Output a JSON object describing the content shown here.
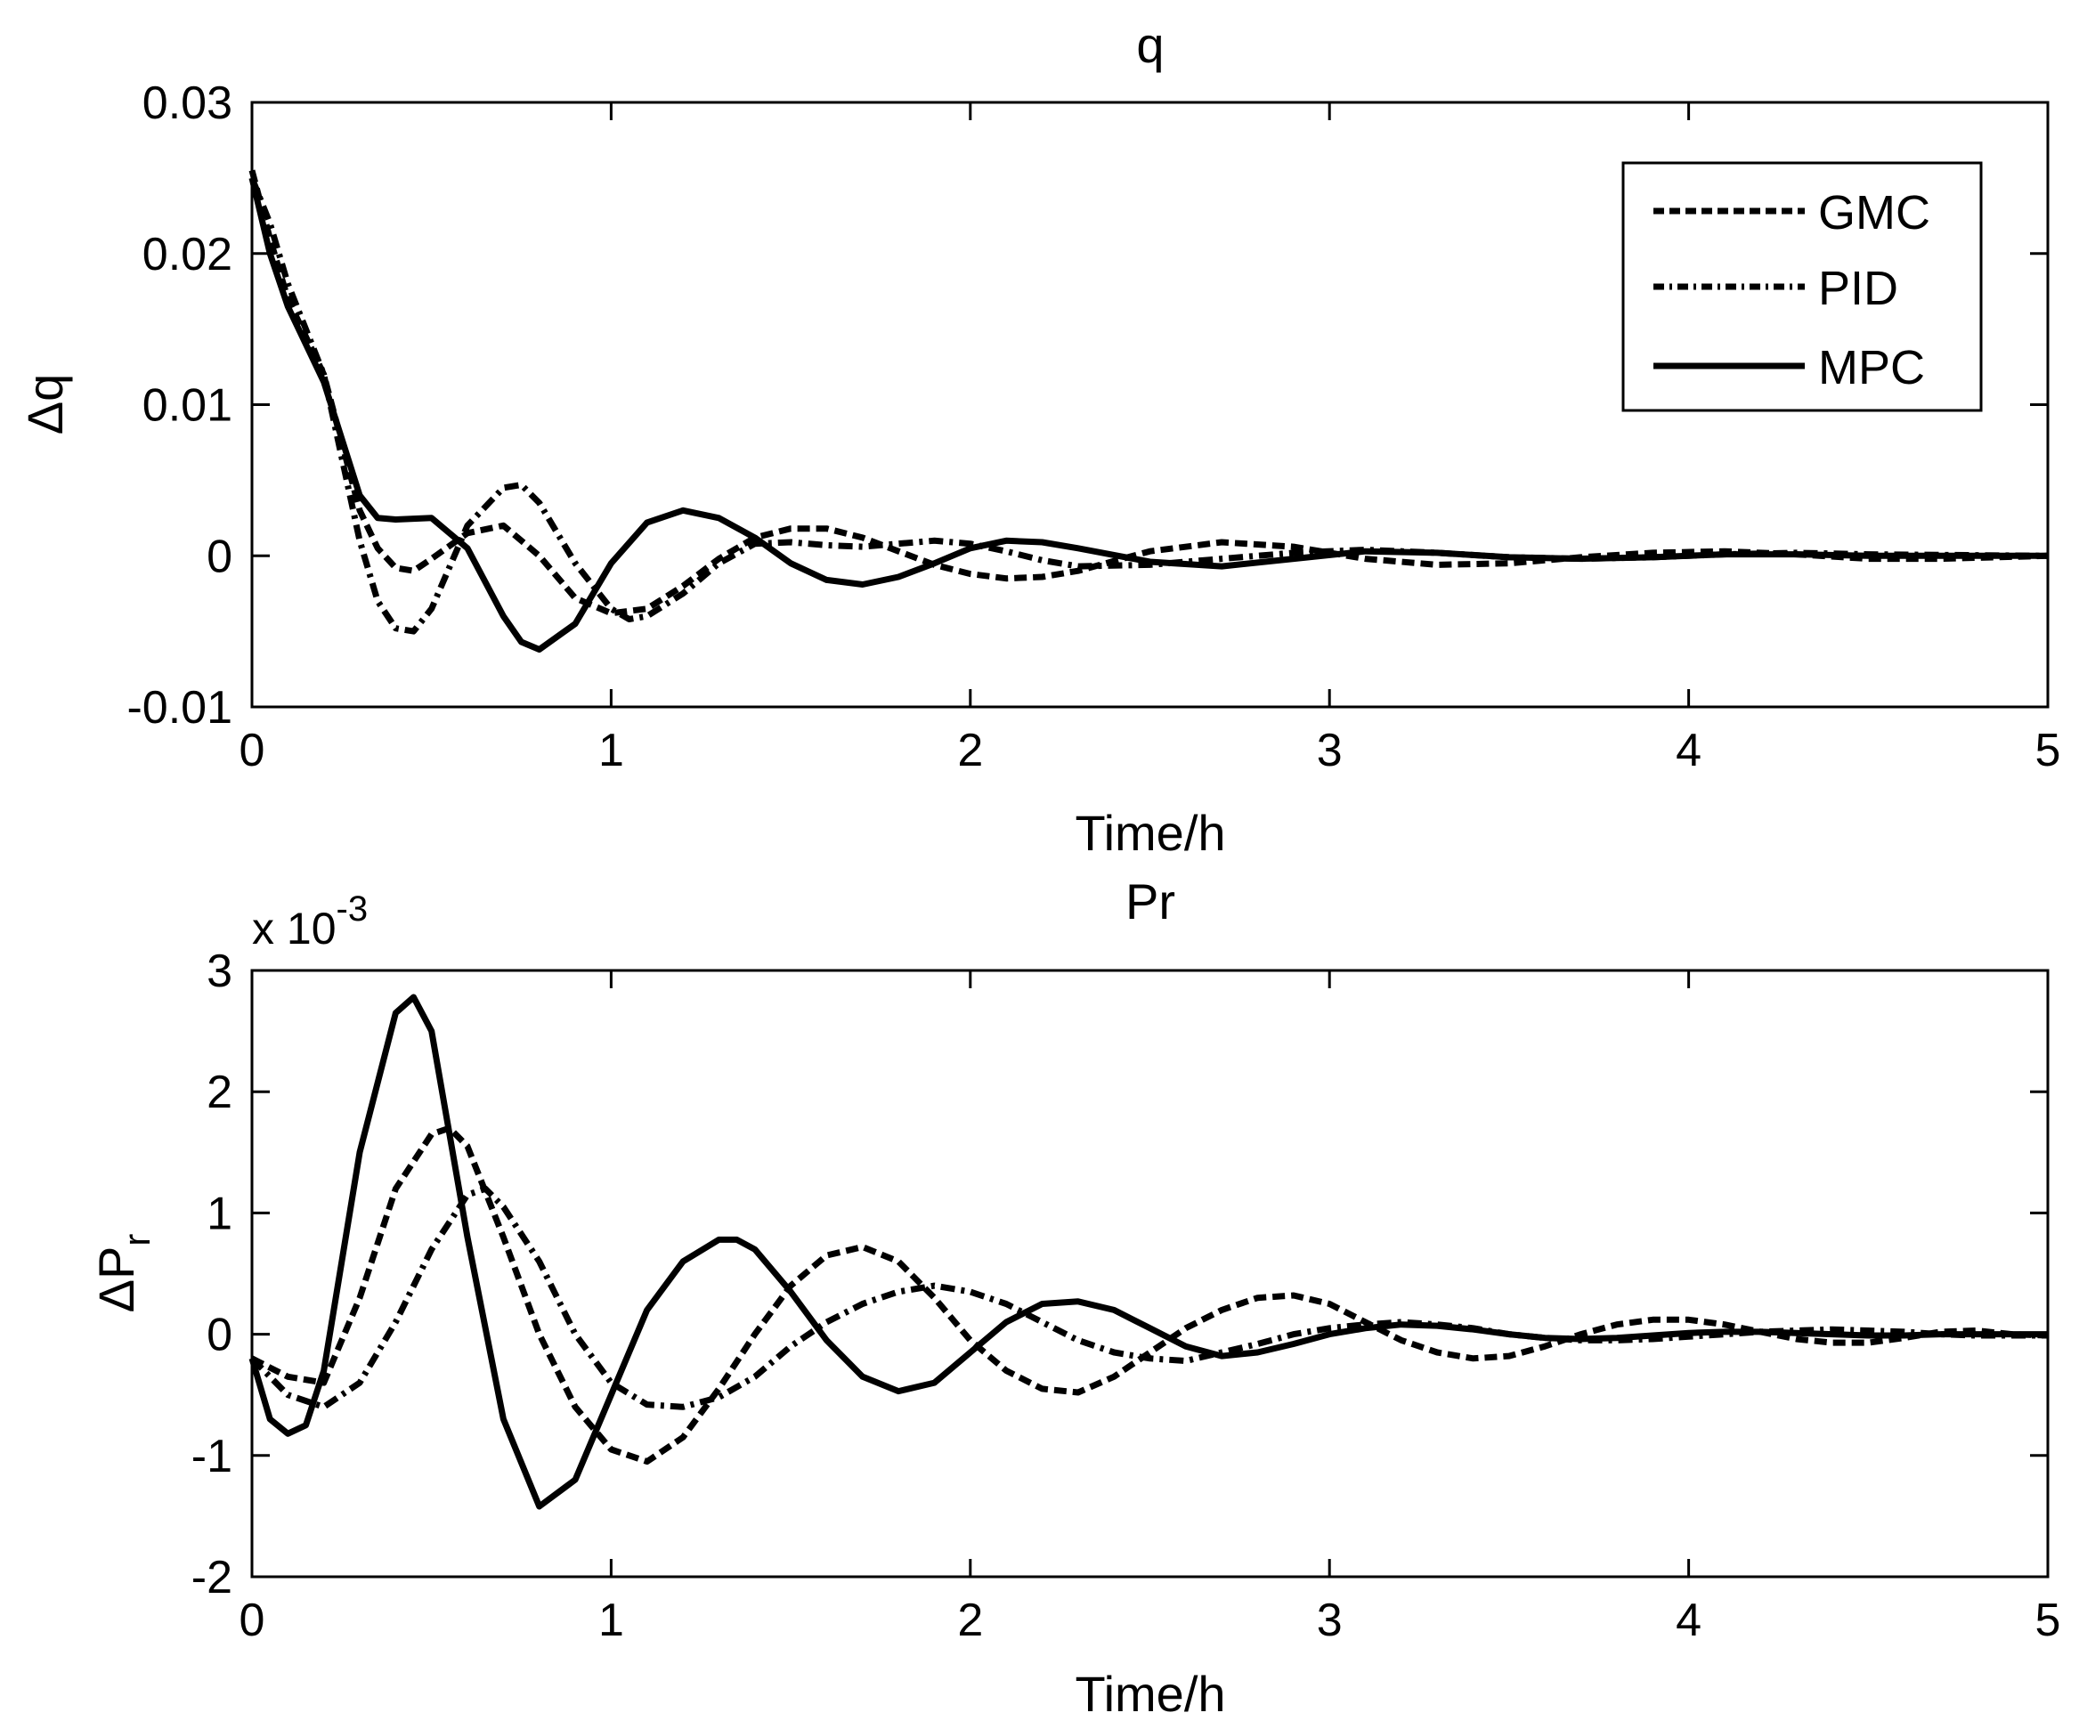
{
  "chart_data": [
    {
      "type": "line",
      "id": "top",
      "title": "q",
      "xlabel": "Time/h",
      "ylabel": "Δq",
      "xlim": [
        0,
        5
      ],
      "ylim": [
        -0.01,
        0.03
      ],
      "xticks": [
        0,
        1,
        2,
        3,
        4,
        5
      ],
      "xtick_labels": [
        "0",
        "1",
        "2",
        "3",
        "4",
        "5"
      ],
      "yticks": [
        -0.01,
        0,
        0.01,
        0.02,
        0.03
      ],
      "ytick_labels": [
        "-0.01",
        "0",
        "0.01",
        "0.02",
        "0.03"
      ],
      "grid": false,
      "legend": {
        "position": "top-right",
        "entries": [
          "GMC",
          "PID",
          "MPC"
        ]
      },
      "series": [
        {
          "name": "GMC",
          "style": "dashed",
          "x": [
            0,
            0.05,
            0.1,
            0.2,
            0.3,
            0.35,
            0.4,
            0.45,
            0.5,
            0.6,
            0.7,
            0.8,
            0.9,
            1.0,
            1.1,
            1.2,
            1.3,
            1.4,
            1.5,
            1.6,
            1.7,
            1.8,
            1.9,
            2.0,
            2.1,
            2.2,
            2.3,
            2.5,
            2.7,
            2.9,
            3.1,
            3.3,
            3.5,
            3.7,
            3.9,
            4.1,
            4.3,
            4.5,
            4.7,
            5.0
          ],
          "y": [
            0.0255,
            0.021,
            0.017,
            0.012,
            0.003,
            0.0005,
            -0.0008,
            -0.001,
            -0.0002,
            0.0015,
            0.002,
            0.0,
            -0.0028,
            -0.0038,
            -0.0035,
            -0.002,
            -0.0002,
            0.0012,
            0.0018,
            0.0018,
            0.0012,
            0.0003,
            -0.0006,
            -0.0012,
            -0.0015,
            -0.0014,
            -0.001,
            0.0003,
            0.0009,
            0.0006,
            -0.0002,
            -0.0006,
            -0.0005,
            -0.0001,
            0.0002,
            0.0003,
            0.0001,
            -0.0002,
            -0.0002,
            0.0
          ]
        },
        {
          "name": "PID",
          "style": "dashdot",
          "x": [
            0,
            0.05,
            0.1,
            0.2,
            0.3,
            0.35,
            0.4,
            0.45,
            0.5,
            0.6,
            0.7,
            0.75,
            0.8,
            0.9,
            1.0,
            1.05,
            1.1,
            1.2,
            1.3,
            1.4,
            1.5,
            1.6,
            1.7,
            1.8,
            1.9,
            2.0,
            2.1,
            2.2,
            2.3,
            2.5,
            2.7,
            2.9,
            3.1,
            3.3,
            3.5,
            3.7,
            3.9,
            4.1,
            4.3,
            4.5,
            5.0
          ],
          "y": [
            0.025,
            0.022,
            0.018,
            0.012,
            0.001,
            -0.003,
            -0.0048,
            -0.005,
            -0.0035,
            0.002,
            0.0045,
            0.0047,
            0.0035,
            -0.0005,
            -0.0035,
            -0.0042,
            -0.004,
            -0.0025,
            -0.0005,
            0.0008,
            0.0009,
            0.0007,
            0.0006,
            0.0008,
            0.001,
            0.0008,
            0.0003,
            -0.0003,
            -0.0007,
            -0.0006,
            -0.0002,
            0.0002,
            0.0004,
            0.0002,
            -0.0001,
            -0.0002,
            -0.0001,
            0.0001,
            0.0002,
            0.0001,
            0.0
          ]
        },
        {
          "name": "MPC",
          "style": "solid",
          "x": [
            0,
            0.05,
            0.1,
            0.2,
            0.3,
            0.35,
            0.4,
            0.5,
            0.6,
            0.7,
            0.75,
            0.8,
            0.9,
            1.0,
            1.1,
            1.2,
            1.3,
            1.4,
            1.5,
            1.6,
            1.7,
            1.8,
            1.9,
            2.0,
            2.1,
            2.2,
            2.3,
            2.5,
            2.7,
            2.9,
            3.1,
            3.3,
            3.5,
            3.7,
            3.9,
            4.1,
            4.3,
            4.5,
            5.0
          ],
          "y": [
            0.025,
            0.02,
            0.0165,
            0.0115,
            0.004,
            0.0025,
            0.0024,
            0.0025,
            0.0005,
            -0.004,
            -0.0057,
            -0.0062,
            -0.0045,
            -0.0005,
            0.0022,
            0.003,
            0.0025,
            0.0012,
            -0.0005,
            -0.0016,
            -0.0019,
            -0.0014,
            -0.0005,
            0.0005,
            0.001,
            0.0009,
            0.0005,
            -0.0004,
            -0.0007,
            -0.0002,
            0.0003,
            0.0002,
            -0.0001,
            -0.0002,
            -0.0001,
            0.0001,
            0.0001,
            0.0,
            0.0
          ]
        }
      ]
    },
    {
      "type": "line",
      "id": "bottom",
      "title": "Pr",
      "xlabel": "Time/h",
      "ylabel": "ΔP",
      "ylabel_sub": "r",
      "exponent_base": "x 10",
      "exponent_power": "-3",
      "xlim": [
        0,
        5
      ],
      "ylim": [
        -2,
        3
      ],
      "xticks": [
        0,
        1,
        2,
        3,
        4,
        5
      ],
      "xtick_labels": [
        "0",
        "1",
        "2",
        "3",
        "4",
        "5"
      ],
      "yticks": [
        -2,
        -1,
        0,
        1,
        2,
        3
      ],
      "ytick_labels": [
        "-2",
        "-1",
        "0",
        "1",
        "2",
        "3"
      ],
      "grid": false,
      "series": [
        {
          "name": "GMC",
          "style": "dashed",
          "x": [
            0,
            0.1,
            0.2,
            0.3,
            0.4,
            0.5,
            0.55,
            0.6,
            0.7,
            0.8,
            0.9,
            1.0,
            1.1,
            1.2,
            1.3,
            1.4,
            1.5,
            1.6,
            1.7,
            1.8,
            1.9,
            2.0,
            2.1,
            2.2,
            2.3,
            2.4,
            2.5,
            2.6,
            2.7,
            2.8,
            2.9,
            3.0,
            3.1,
            3.2,
            3.3,
            3.4,
            3.5,
            3.6,
            3.7,
            3.8,
            3.9,
            4.0,
            4.1,
            4.2,
            4.3,
            4.4,
            4.5,
            4.6,
            4.7,
            4.8,
            4.9,
            5.0
          ],
          "y": [
            -0.2,
            -0.35,
            -0.4,
            0.3,
            1.2,
            1.65,
            1.7,
            1.55,
            0.8,
            0.0,
            -0.6,
            -0.95,
            -1.05,
            -0.85,
            -0.45,
            0.0,
            0.4,
            0.65,
            0.72,
            0.6,
            0.3,
            -0.05,
            -0.3,
            -0.45,
            -0.48,
            -0.35,
            -0.15,
            0.05,
            0.2,
            0.3,
            0.32,
            0.25,
            0.1,
            -0.05,
            -0.15,
            -0.2,
            -0.18,
            -0.1,
            0.0,
            0.08,
            0.12,
            0.12,
            0.08,
            0.02,
            -0.04,
            -0.07,
            -0.07,
            -0.03,
            0.02,
            0.03,
            0.0,
            -0.01
          ]
        },
        {
          "name": "PID",
          "style": "dashdot",
          "x": [
            0,
            0.1,
            0.2,
            0.3,
            0.4,
            0.5,
            0.6,
            0.65,
            0.7,
            0.8,
            0.9,
            1.0,
            1.1,
            1.2,
            1.3,
            1.4,
            1.5,
            1.6,
            1.7,
            1.8,
            1.9,
            2.0,
            2.1,
            2.2,
            2.3,
            2.4,
            2.5,
            2.6,
            2.7,
            2.8,
            2.9,
            3.0,
            3.1,
            3.2,
            3.3,
            3.4,
            3.5,
            3.6,
            3.7,
            3.8,
            3.9,
            4.0,
            4.1,
            4.2,
            4.3,
            4.4,
            4.5,
            4.6,
            4.7,
            4.8,
            4.9,
            5.0
          ],
          "y": [
            -0.2,
            -0.5,
            -0.6,
            -0.4,
            0.1,
            0.7,
            1.15,
            1.2,
            1.05,
            0.6,
            0.0,
            -0.4,
            -0.58,
            -0.6,
            -0.52,
            -0.35,
            -0.1,
            0.1,
            0.25,
            0.35,
            0.4,
            0.35,
            0.25,
            0.1,
            -0.05,
            -0.15,
            -0.2,
            -0.22,
            -0.15,
            -0.08,
            0.0,
            0.05,
            0.08,
            0.1,
            0.08,
            0.05,
            0.0,
            -0.03,
            -0.05,
            -0.05,
            -0.04,
            -0.02,
            0.0,
            0.02,
            0.03,
            0.04,
            0.03,
            0.02,
            0.0,
            -0.01,
            -0.01,
            -0.01
          ]
        },
        {
          "name": "MPC",
          "style": "solid",
          "x": [
            0,
            0.05,
            0.1,
            0.15,
            0.2,
            0.3,
            0.4,
            0.45,
            0.5,
            0.6,
            0.7,
            0.8,
            0.9,
            1.0,
            1.1,
            1.2,
            1.3,
            1.35,
            1.4,
            1.5,
            1.6,
            1.7,
            1.8,
            1.9,
            2.0,
            2.1,
            2.2,
            2.3,
            2.4,
            2.5,
            2.6,
            2.7,
            2.8,
            2.9,
            3.0,
            3.1,
            3.2,
            3.3,
            3.4,
            3.5,
            3.6,
            3.7,
            3.8,
            3.9,
            4.0,
            4.1,
            4.2,
            4.3,
            4.4,
            4.5,
            4.6,
            4.7,
            4.8,
            4.9,
            5.0
          ],
          "y": [
            -0.2,
            -0.7,
            -0.82,
            -0.75,
            -0.3,
            1.5,
            2.65,
            2.78,
            2.5,
            0.8,
            -0.7,
            -1.42,
            -1.2,
            -0.5,
            0.2,
            0.6,
            0.78,
            0.78,
            0.7,
            0.35,
            -0.05,
            -0.35,
            -0.47,
            -0.4,
            -0.15,
            0.1,
            0.25,
            0.27,
            0.2,
            0.05,
            -0.1,
            -0.18,
            -0.15,
            -0.08,
            0.0,
            0.05,
            0.08,
            0.07,
            0.04,
            0.0,
            -0.03,
            -0.04,
            -0.03,
            -0.01,
            0.01,
            0.02,
            0.02,
            0.01,
            0.0,
            -0.01,
            -0.01,
            0.0,
            0.0,
            0.0,
            0.0
          ]
        }
      ]
    }
  ]
}
